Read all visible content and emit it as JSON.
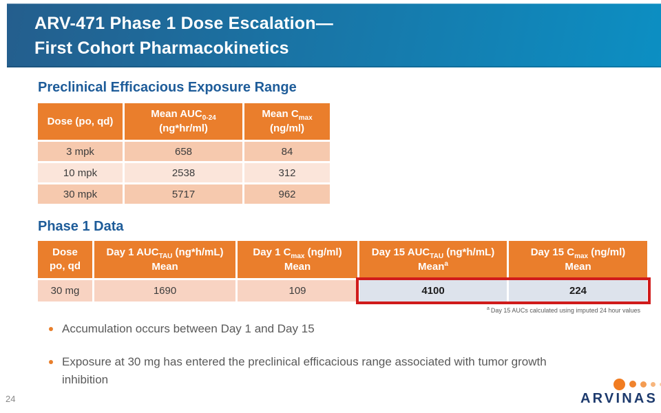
{
  "slide": {
    "title_line1": "ARV-471 Phase 1 Dose Escalation—",
    "title_line2": "First Cohort Pharmacokinetics",
    "page_number": "24"
  },
  "preclinical": {
    "heading": "Preclinical Efficacious Exposure Range",
    "table": {
      "columns": [
        {
          "label": "Dose (po, qd)"
        },
        {
          "pre": "Mean AUC",
          "sub": "0-24",
          "line2": "(ng*hr/ml)"
        },
        {
          "pre": "Mean C",
          "sub": "max",
          "line2": "(ng/ml)"
        }
      ],
      "rows": [
        [
          "3 mpk",
          "658",
          "84"
        ],
        [
          "10 mpk",
          "2538",
          "312"
        ],
        [
          "30 mpk",
          "5717",
          "962"
        ]
      ]
    }
  },
  "phase1": {
    "heading": "Phase 1 Data",
    "table": {
      "columns": [
        {
          "line1": "Dose",
          "line2": "po, qd"
        },
        {
          "pre": "Day 1 AUC",
          "sub": "TAU",
          "post": " (ng*h/mL)",
          "line2": "Mean"
        },
        {
          "pre": "Day 1 C",
          "sub": "max",
          "post": " (ng/ml)",
          "line2": "Mean"
        },
        {
          "pre": "Day 15 AUC",
          "sub": "TAU",
          "post": " (ng*h/mL)",
          "line2": "Mean",
          "line2_sup": "a"
        },
        {
          "pre": "Day 15 C",
          "sub": "max",
          "post": " (ng/ml)",
          "line2": "Mean"
        }
      ],
      "row": [
        "30 mg",
        "1690",
        "109",
        "4100",
        "224"
      ]
    },
    "footnote_marker": "a",
    "footnote_text": "Day 15 AUCs calculated using imputed 24 hour values"
  },
  "bullets": [
    "Accumulation occurs between Day 1 and Day 15",
    "Exposure at 30 mg has entered the preclinical efficacious range associated with tumor growth inhibition"
  ],
  "logo": {
    "wordmark": "ARVINAS"
  },
  "colors": {
    "banner_gradient_start": "#245e8d",
    "banner_gradient_end": "#0c8fc3",
    "heading_blue": "#1e5c99",
    "table_header_orange": "#ea7e2c",
    "row_peach_dark": "#f6c9ae",
    "row_peach_light": "#fbe5da",
    "phase1_row_peach": "#f8d3c2",
    "highlight_cell_gray": "#dde3ec",
    "highlight_border_red": "#d01b1b",
    "body_text_gray": "#595959",
    "logo_navy": "#1d3a6d",
    "logo_orange": "#f17c21"
  }
}
